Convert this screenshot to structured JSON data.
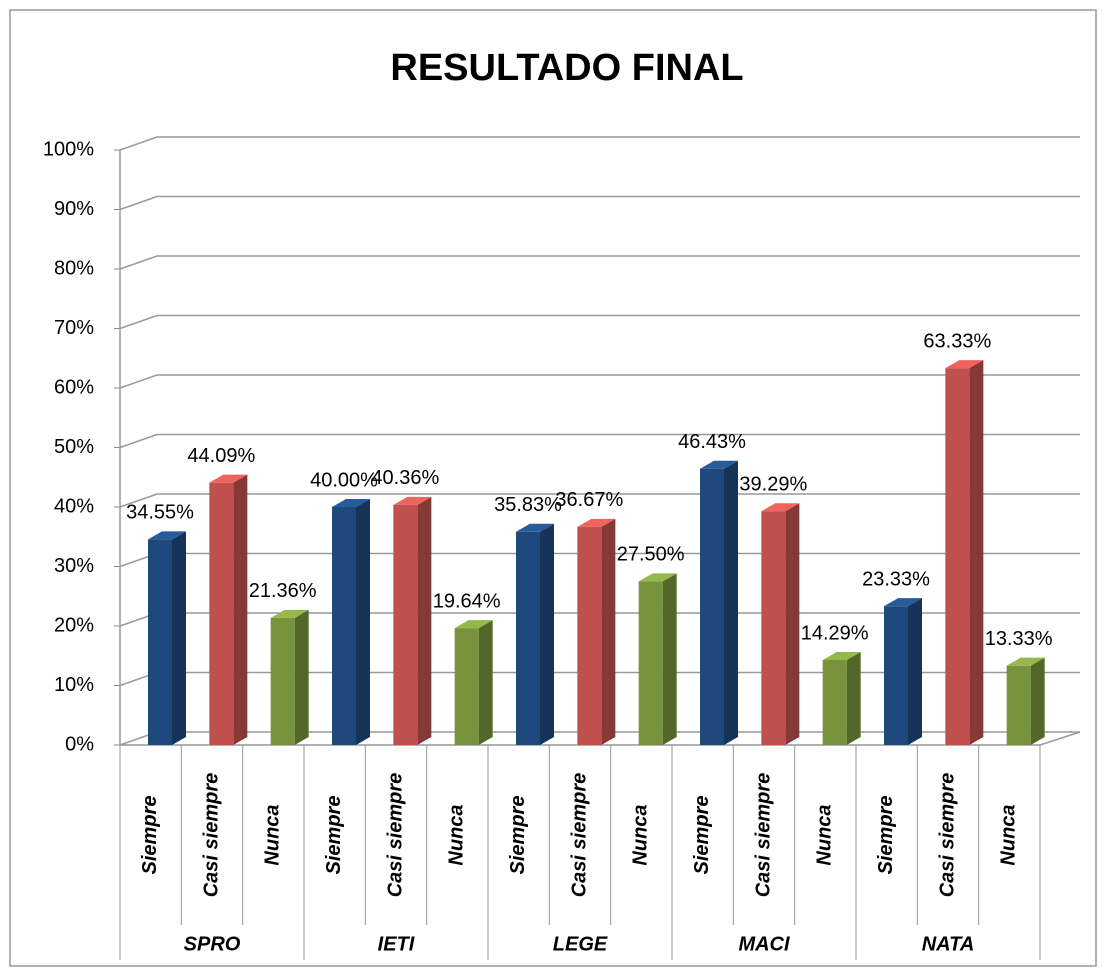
{
  "chart_data": {
    "type": "bar3d",
    "title": "RESULTADO FINAL",
    "categories": [
      "SPRO",
      "IETI",
      "LEGE",
      "MACI",
      "NATA"
    ],
    "series": [
      {
        "name": "Siempre",
        "color": "#1f497d",
        "values": [
          34.55,
          40.0,
          35.83,
          46.43,
          23.33
        ],
        "value_labels": [
          "34.55%",
          "40.00%",
          "35.83%",
          "46.43%",
          "23.33%"
        ]
      },
      {
        "name": "Casi siempre",
        "color": "#c0504d",
        "values": [
          44.09,
          40.36,
          36.67,
          39.29,
          63.33
        ],
        "value_labels": [
          "44.09%",
          "40.36%",
          "36.67%",
          "39.29%",
          "63.33%"
        ]
      },
      {
        "name": "Nunca",
        "color": "#77933c",
        "values": [
          21.36,
          19.64,
          27.5,
          14.29,
          13.33
        ],
        "value_labels": [
          "21.36%",
          "19.64%",
          "27.50%",
          "14.29%",
          "13.33%"
        ]
      }
    ],
    "ylim": [
      0,
      100
    ],
    "yticks": [
      {
        "value": 0,
        "label": "0%"
      },
      {
        "value": 10,
        "label": "10%"
      },
      {
        "value": 20,
        "label": "20%"
      },
      {
        "value": 30,
        "label": "30%"
      },
      {
        "value": 40,
        "label": "40%"
      },
      {
        "value": 50,
        "label": "50%"
      },
      {
        "value": 60,
        "label": "60%"
      },
      {
        "value": 70,
        "label": "70%"
      },
      {
        "value": 80,
        "label": "80%"
      },
      {
        "value": 90,
        "label": "90%"
      },
      {
        "value": 100,
        "label": "100%"
      }
    ],
    "grid": true
  }
}
